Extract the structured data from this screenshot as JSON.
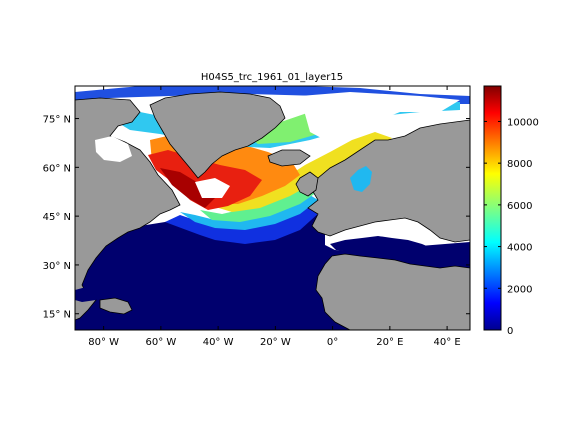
{
  "map": {
    "title": "H04S5_trc_1961_01_layer15",
    "lat_ticks": [
      {
        "value": 75,
        "label": "75° N"
      },
      {
        "value": 60,
        "label": "60° N"
      },
      {
        "value": 45,
        "label": "45° N"
      },
      {
        "value": 30,
        "label": "30° N"
      },
      {
        "value": 15,
        "label": "15° N"
      }
    ],
    "lon_ticks": [
      {
        "value": -80,
        "label": "80° W"
      },
      {
        "value": -60,
        "label": "60° W"
      },
      {
        "value": -40,
        "label": "40° W"
      },
      {
        "value": -20,
        "label": "20° W"
      },
      {
        "value": 0,
        "label": "0°"
      },
      {
        "value": 20,
        "label": "20° E"
      },
      {
        "value": 40,
        "label": "40° E"
      }
    ],
    "lon_range": [
      -90,
      48
    ],
    "lat_range": [
      10,
      85
    ],
    "colors": {
      "land": "#999999",
      "ice": "#ffffff",
      "coast": "#000000"
    }
  },
  "colorbar": {
    "range": [
      0,
      11700
    ],
    "ticks": [
      {
        "value": 0,
        "label": "0"
      },
      {
        "value": 2000,
        "label": "2000"
      },
      {
        "value": 4000,
        "label": "4000"
      },
      {
        "value": 6000,
        "label": "6000"
      },
      {
        "value": 8000,
        "label": "8000"
      },
      {
        "value": 10000,
        "label": "10000"
      }
    ],
    "colormap": "jet"
  }
}
